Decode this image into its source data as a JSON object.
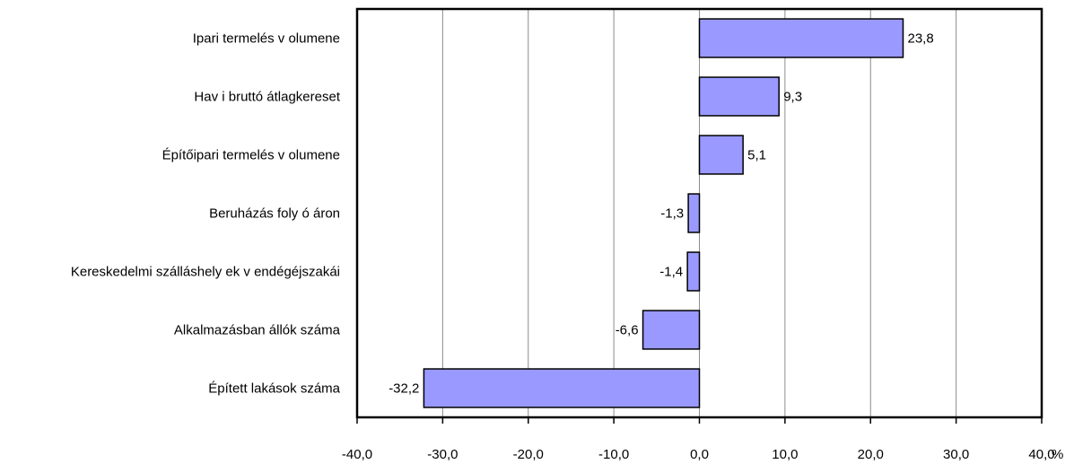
{
  "chart_data": {
    "type": "bar",
    "orientation": "horizontal",
    "categories": [
      "Ipari termelés v olumene",
      "Hav i bruttó átlagkereset",
      "Építőipari termelés v olumene",
      "Beruházás foly ó áron",
      "Kereskedelmi szálláshely ek v endégéjszakái",
      "Alkalmazásban állók száma",
      "Épített lakások száma"
    ],
    "values": [
      23.8,
      9.3,
      5.1,
      -1.3,
      -1.4,
      -6.6,
      -32.2
    ],
    "value_labels": [
      "23,8",
      "9,3",
      "5,1",
      "-1,3",
      "-1,4",
      "-6,6",
      "-32,2"
    ],
    "xlim": [
      -40,
      40
    ],
    "x_ticks": [
      -40,
      -30,
      -20,
      -10,
      0,
      10,
      20,
      30,
      40
    ],
    "x_tick_labels": [
      "-40,0",
      "-30,0",
      "-20,0",
      "-10,0",
      "0,0",
      "10,0",
      "20,0",
      "30,0",
      "40,0"
    ],
    "unit": "%",
    "grid": true,
    "title": "",
    "xlabel": "",
    "ylabel": "",
    "colors": {
      "bar_fill": "#9999ff",
      "bar_stroke": "#000000",
      "grid": "#8c8c8c"
    }
  }
}
